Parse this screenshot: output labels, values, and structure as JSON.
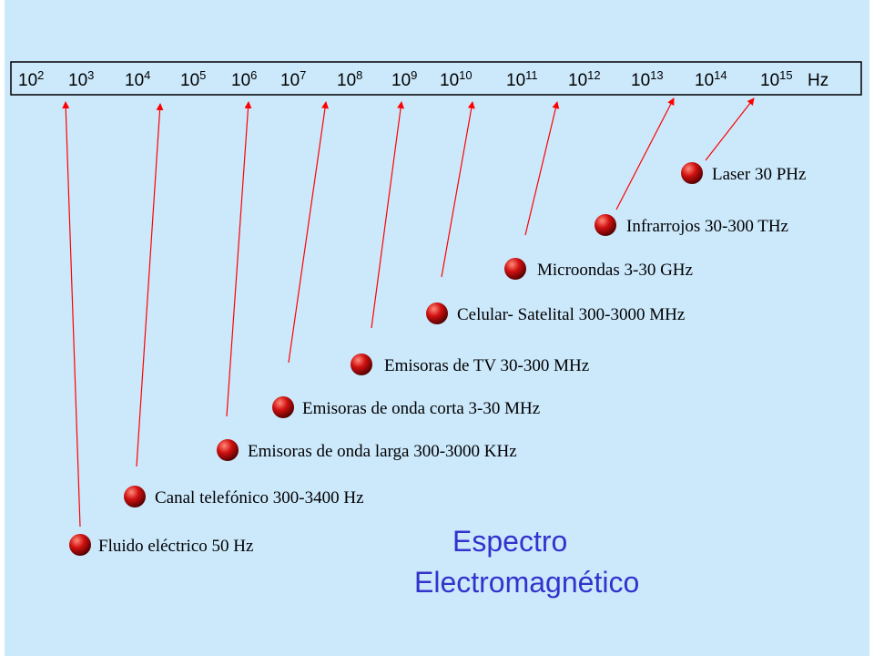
{
  "scale": {
    "ticks": [
      {
        "base": "10",
        "exponent": "2"
      },
      {
        "base": "10",
        "exponent": "3"
      },
      {
        "base": "10",
        "exponent": "4"
      },
      {
        "base": "10",
        "exponent": "5"
      },
      {
        "base": "10",
        "exponent": "6"
      },
      {
        "base": "10",
        "exponent": "7"
      },
      {
        "base": "10",
        "exponent": "8"
      },
      {
        "base": "10",
        "exponent": "9"
      },
      {
        "base": "10",
        "exponent": "10"
      },
      {
        "base": "10",
        "exponent": "11"
      },
      {
        "base": "10",
        "exponent": "12"
      },
      {
        "base": "10",
        "exponent": "13"
      },
      {
        "base": "10",
        "exponent": "14"
      },
      {
        "base": "10",
        "exponent": "15"
      }
    ],
    "unit": "Hz"
  },
  "items": [
    {
      "label": "Fluido eléctrico 50 Hz"
    },
    {
      "label": "Canal telefónico 300-3400 Hz"
    },
    {
      "label": "Emisoras de onda larga 300-3000 KHz"
    },
    {
      "label": "Emisoras de onda corta 3-30 MHz"
    },
    {
      "label": "Emisoras de TV  30-300 MHz"
    },
    {
      "label": "Celular- Satelital  300-3000 MHz"
    },
    {
      "label": "Microondas  3-30 GHz"
    },
    {
      "label": "Infrarrojos  30-300 THz"
    },
    {
      "label": "Laser  30 PHz"
    }
  ],
  "title": {
    "line1": "Espectro",
    "line2": "Electromagnético"
  }
}
